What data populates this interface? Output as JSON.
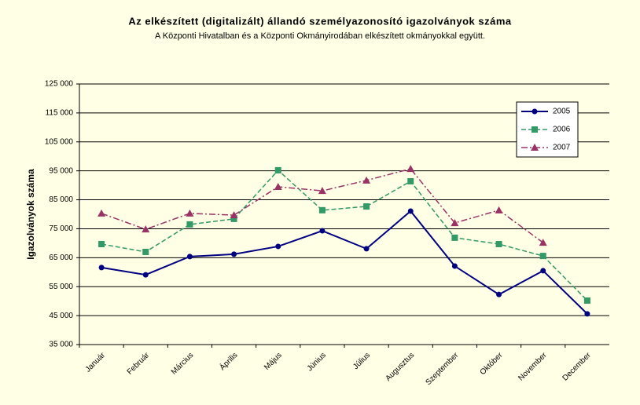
{
  "chart_data": {
    "type": "line",
    "title": "Az elkészített (digitalizált) állandó személyazonosító igazolványok száma",
    "subtitle": "A Központi Hivatalban és a Központi Okmányirodában elkészített okmányokkal együtt.",
    "y_label": "Igazolványok száma",
    "categories": [
      "Január",
      "Február",
      "Március",
      "Április",
      "Május",
      "Június",
      "Július",
      "Augusztus",
      "Szeptember",
      "Október",
      "November",
      "December"
    ],
    "series": [
      {
        "name": "2005",
        "color": "#000080",
        "marker": "circle",
        "dash": "",
        "values": [
          61600,
          59100,
          65400,
          66200,
          68900,
          74300,
          68100,
          81100,
          62100,
          52300,
          60500,
          45600
        ]
      },
      {
        "name": "2006",
        "color": "#339966",
        "marker": "square",
        "dash": "6 3",
        "values": [
          69700,
          67000,
          76500,
          78400,
          95200,
          81400,
          82700,
          91400,
          71900,
          69700,
          65600,
          50200
        ]
      },
      {
        "name": "2007",
        "color": "#993366",
        "marker": "triangle",
        "dash": "8 3 2 3",
        "values": [
          80300,
          74800,
          80300,
          79700,
          89500,
          88100,
          91700,
          95700,
          77000,
          81400,
          70200,
          null
        ]
      }
    ],
    "ylim": [
      35000,
      125000
    ],
    "yticks": [
      {
        "value": 35000,
        "label": "35 000"
      },
      {
        "value": 45000,
        "label": "45 000"
      },
      {
        "value": 55000,
        "label": "55 000"
      },
      {
        "value": 65000,
        "label": "65 000"
      },
      {
        "value": 75000,
        "label": "75 000"
      },
      {
        "value": 85000,
        "label": "85 000"
      },
      {
        "value": 95000,
        "label": "95 000"
      },
      {
        "value": 105000,
        "label": "105 000"
      },
      {
        "value": 115000,
        "label": "115 000"
      },
      {
        "value": 125000,
        "label": "125 000"
      }
    ],
    "grid": true,
    "legend": "upper right"
  }
}
